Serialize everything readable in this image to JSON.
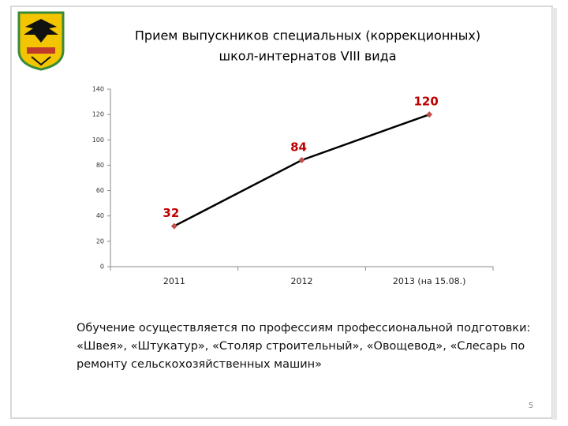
{
  "chart_data": {
    "type": "line",
    "title": [
      "Прием выпускников специальных (коррекционных)",
      "школ-интернатов VIII вида"
    ],
    "categories": [
      "2011",
      "2012",
      "2013 (на 15.08.)"
    ],
    "values": [
      32,
      84,
      120
    ],
    "color": "#000000",
    "marker_color": "#c0504d",
    "label_color": "#c00000",
    "ylim": [
      0,
      140
    ],
    "yticks": [
      0,
      20,
      40,
      60,
      80,
      100,
      120,
      140
    ],
    "grid": false
  },
  "text": "Обучение осуществляется по профессиям профессиональной подготовки: «Швея», «Штукатур», «Столяр строительный», «Овощевод», «Слесарь по ремонту сельскохозяйственных машин»",
  "page_number": "5"
}
